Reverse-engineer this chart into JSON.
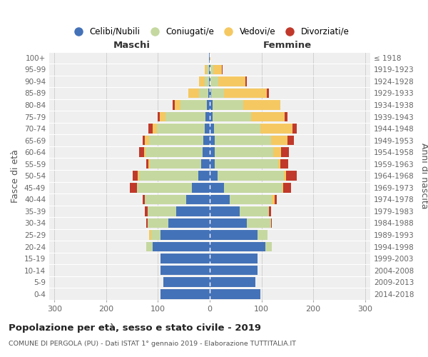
{
  "age_groups": [
    "0-4",
    "5-9",
    "10-14",
    "15-19",
    "20-24",
    "25-29",
    "30-34",
    "35-39",
    "40-44",
    "45-49",
    "50-54",
    "55-59",
    "60-64",
    "65-69",
    "70-74",
    "75-79",
    "80-84",
    "85-89",
    "90-94",
    "95-99",
    "100+"
  ],
  "birth_years": [
    "2014-2018",
    "2009-2013",
    "2004-2008",
    "1999-2003",
    "1994-1998",
    "1989-1993",
    "1984-1988",
    "1979-1983",
    "1974-1978",
    "1969-1973",
    "1964-1968",
    "1959-1963",
    "1954-1958",
    "1949-1953",
    "1944-1948",
    "1939-1943",
    "1934-1938",
    "1929-1933",
    "1924-1928",
    "1919-1923",
    "≤ 1918"
  ],
  "males_celibi": [
    95,
    90,
    95,
    95,
    110,
    95,
    80,
    65,
    45,
    35,
    22,
    16,
    14,
    12,
    10,
    8,
    5,
    3,
    2,
    2,
    1
  ],
  "males_coniugati": [
    0,
    0,
    0,
    0,
    12,
    18,
    40,
    55,
    80,
    105,
    115,
    100,
    110,
    105,
    92,
    78,
    52,
    18,
    8,
    4,
    0
  ],
  "males_vedovi": [
    0,
    0,
    0,
    0,
    0,
    4,
    0,
    0,
    0,
    0,
    2,
    2,
    3,
    8,
    8,
    10,
    10,
    20,
    10,
    4,
    0
  ],
  "males_divorziati": [
    0,
    0,
    0,
    0,
    0,
    0,
    2,
    5,
    5,
    15,
    10,
    5,
    10,
    5,
    8,
    5,
    5,
    0,
    0,
    0,
    0
  ],
  "females_nubili": [
    98,
    88,
    92,
    92,
    108,
    92,
    72,
    58,
    38,
    28,
    15,
    10,
    10,
    10,
    8,
    5,
    5,
    3,
    2,
    2,
    0
  ],
  "females_coniugate": [
    0,
    0,
    0,
    0,
    12,
    20,
    46,
    56,
    82,
    112,
    128,
    122,
    112,
    108,
    90,
    75,
    60,
    25,
    15,
    5,
    0
  ],
  "females_vedove": [
    0,
    0,
    0,
    0,
    0,
    0,
    0,
    0,
    5,
    2,
    5,
    5,
    16,
    32,
    62,
    65,
    72,
    82,
    52,
    16,
    2
  ],
  "females_divorziate": [
    0,
    0,
    0,
    0,
    0,
    0,
    2,
    5,
    5,
    15,
    20,
    15,
    15,
    12,
    8,
    5,
    0,
    5,
    2,
    2,
    0
  ],
  "color_celibi": "#4472b8",
  "color_coniugati": "#c5d8a0",
  "color_vedovi": "#f5c862",
  "color_divorziati": "#c0392b",
  "xlim": 310,
  "title": "Popolazione per età, sesso e stato civile - 2019",
  "subtitle": "COMUNE DI PERGOLA (PU) - Dati ISTAT 1° gennaio 2019 - Elaborazione TUTTITALIA.IT",
  "ylabel_left": "Fasce di età",
  "ylabel_right": "Anni di nascita",
  "label_maschi": "Maschi",
  "label_femmine": "Femmine",
  "bg_color": "#efefef",
  "legend_labels": [
    "Celibi/Nubili",
    "Coniugati/e",
    "Vedovi/e",
    "Divorziati/e"
  ]
}
